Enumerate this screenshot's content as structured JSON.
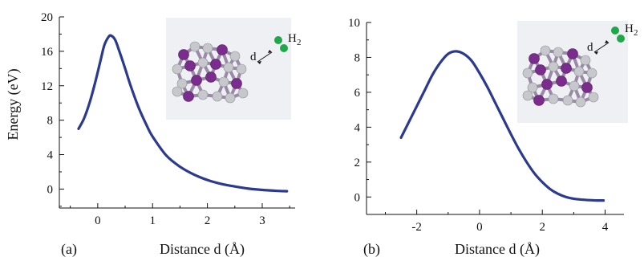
{
  "figure": {
    "colors": {
      "curve": "#2b3a8f",
      "axis": "#111111",
      "inset_background": "#eef0f4",
      "purple_atom": "#7b2d8e",
      "silver_atom": "#c6c8cc",
      "hydrogen_atom": "#1fa84a"
    }
  },
  "chart_data": [
    {
      "type": "line",
      "panel_label": "(a)",
      "xlabel": "Distance d (Å)",
      "ylabel": "Energy (eV)",
      "xlim": [
        -0.7,
        3.6
      ],
      "ylim": [
        -2.2,
        20
      ],
      "xticks": [
        0,
        1,
        2,
        3
      ],
      "xtick_labels": [
        "0",
        "1",
        "2",
        "3"
      ],
      "yticks": [
        0,
        4,
        8,
        12,
        16,
        20
      ],
      "ytick_labels": [
        "0",
        "4",
        "8",
        "12",
        "16",
        "20"
      ],
      "inset": {
        "label_d": "d",
        "label_h2": "H",
        "label_h2_sub": "2"
      },
      "series": [
        {
          "x": [
            -0.35,
            -0.25,
            -0.15,
            -0.05,
            0.05,
            0.12,
            0.2,
            0.25,
            0.32,
            0.4,
            0.5,
            0.6,
            0.75,
            0.9,
            1.0,
            1.25,
            1.5,
            1.75,
            2.0,
            2.25,
            2.5,
            2.75,
            3.0,
            3.25,
            3.45
          ],
          "y": [
            7.0,
            8.2,
            10.0,
            12.3,
            14.9,
            16.7,
            17.7,
            17.8,
            17.3,
            15.9,
            14.0,
            12.0,
            9.4,
            7.3,
            6.1,
            3.9,
            2.6,
            1.7,
            1.05,
            0.6,
            0.3,
            0.05,
            -0.1,
            -0.2,
            -0.25
          ]
        }
      ]
    },
    {
      "type": "line",
      "panel_label": "(b)",
      "xlabel": "Distance d (Å)",
      "ylabel": "",
      "xlim": [
        -3.6,
        4.6
      ],
      "ylim": [
        -1.0,
        10
      ],
      "xticks": [
        -2,
        0,
        2,
        4
      ],
      "xtick_labels": [
        "-2",
        "0",
        "2",
        "4"
      ],
      "yticks": [
        0,
        2,
        4,
        6,
        8,
        10
      ],
      "ytick_labels": [
        "0",
        "2",
        "4",
        "6",
        "8",
        "10"
      ],
      "inset": {
        "label_d": "d",
        "label_h2": "H",
        "label_h2_sub": "2"
      },
      "series": [
        {
          "x": [
            -2.5,
            -2.25,
            -2.0,
            -1.75,
            -1.5,
            -1.25,
            -1.0,
            -0.75,
            -0.5,
            -0.25,
            0.0,
            0.25,
            0.5,
            0.75,
            1.0,
            1.25,
            1.5,
            1.75,
            2.0,
            2.25,
            2.5,
            2.75,
            3.0,
            3.25,
            3.5,
            3.75,
            3.95
          ],
          "y": [
            3.4,
            4.3,
            5.2,
            6.1,
            7.0,
            7.7,
            8.2,
            8.35,
            8.2,
            7.8,
            7.1,
            6.3,
            5.4,
            4.5,
            3.6,
            2.75,
            2.0,
            1.35,
            0.85,
            0.45,
            0.18,
            0.0,
            -0.1,
            -0.15,
            -0.18,
            -0.2,
            -0.2
          ]
        }
      ]
    }
  ]
}
